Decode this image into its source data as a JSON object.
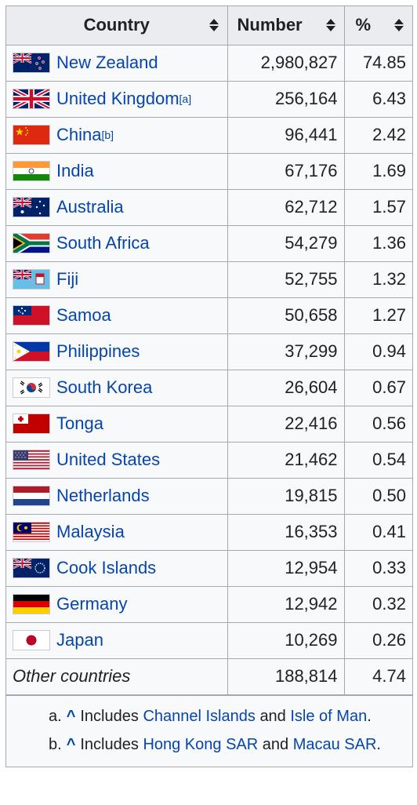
{
  "header": {
    "country": "Country",
    "number": "Number",
    "percent": "%"
  },
  "rows": [
    {
      "name": "New Zealand",
      "sup": "",
      "number": "2,980,827",
      "percent": "74.85",
      "flag": "new-zealand-flag"
    },
    {
      "name": "United Kingdom",
      "sup": "[a]",
      "number": "256,164",
      "percent": "6.43",
      "flag": "united-kingdom-flag"
    },
    {
      "name": "China",
      "sup": "[b]",
      "number": "96,441",
      "percent": "2.42",
      "flag": "china-flag"
    },
    {
      "name": "India",
      "sup": "",
      "number": "67,176",
      "percent": "1.69",
      "flag": "india-flag"
    },
    {
      "name": "Australia",
      "sup": "",
      "number": "62,712",
      "percent": "1.57",
      "flag": "australia-flag"
    },
    {
      "name": "South Africa",
      "sup": "",
      "number": "54,279",
      "percent": "1.36",
      "flag": "south-africa-flag"
    },
    {
      "name": "Fiji",
      "sup": "",
      "number": "52,755",
      "percent": "1.32",
      "flag": "fiji-flag"
    },
    {
      "name": "Samoa",
      "sup": "",
      "number": "50,658",
      "percent": "1.27",
      "flag": "samoa-flag"
    },
    {
      "name": "Philippines",
      "sup": "",
      "number": "37,299",
      "percent": "0.94",
      "flag": "philippines-flag"
    },
    {
      "name": "South Korea",
      "sup": "",
      "number": "26,604",
      "percent": "0.67",
      "flag": "south-korea-flag"
    },
    {
      "name": "Tonga",
      "sup": "",
      "number": "22,416",
      "percent": "0.56",
      "flag": "tonga-flag"
    },
    {
      "name": "United States",
      "sup": "",
      "number": "21,462",
      "percent": "0.54",
      "flag": "united-states-flag"
    },
    {
      "name": "Netherlands",
      "sup": "",
      "number": "19,815",
      "percent": "0.50",
      "flag": "netherlands-flag"
    },
    {
      "name": "Malaysia",
      "sup": "",
      "number": "16,353",
      "percent": "0.41",
      "flag": "malaysia-flag"
    },
    {
      "name": "Cook Islands",
      "sup": "",
      "number": "12,954",
      "percent": "0.33",
      "flag": "cook-islands-flag"
    },
    {
      "name": "Germany",
      "sup": "",
      "number": "12,942",
      "percent": "0.32",
      "flag": "germany-flag"
    },
    {
      "name": "Japan",
      "sup": "",
      "number": "10,269",
      "percent": "0.26",
      "flag": "japan-flag"
    }
  ],
  "other": {
    "name": "Other countries",
    "number": "188,814",
    "percent": "4.74"
  },
  "notes": {
    "a": {
      "marker": "a.",
      "caret": "^",
      "text1": "Includes",
      "link1": "Channel Islands",
      "mid": "and",
      "link2": "Isle of Man",
      "end": "."
    },
    "b": {
      "marker": "b.",
      "caret": "^",
      "text1": "Includes",
      "link1": "Hong Kong SAR",
      "mid": "and",
      "link2": "Macau SAR",
      "end": "."
    }
  },
  "colors": {
    "link": "#0645ad",
    "border": "#a2a9b1",
    "header_bg": "#eaecf0"
  }
}
